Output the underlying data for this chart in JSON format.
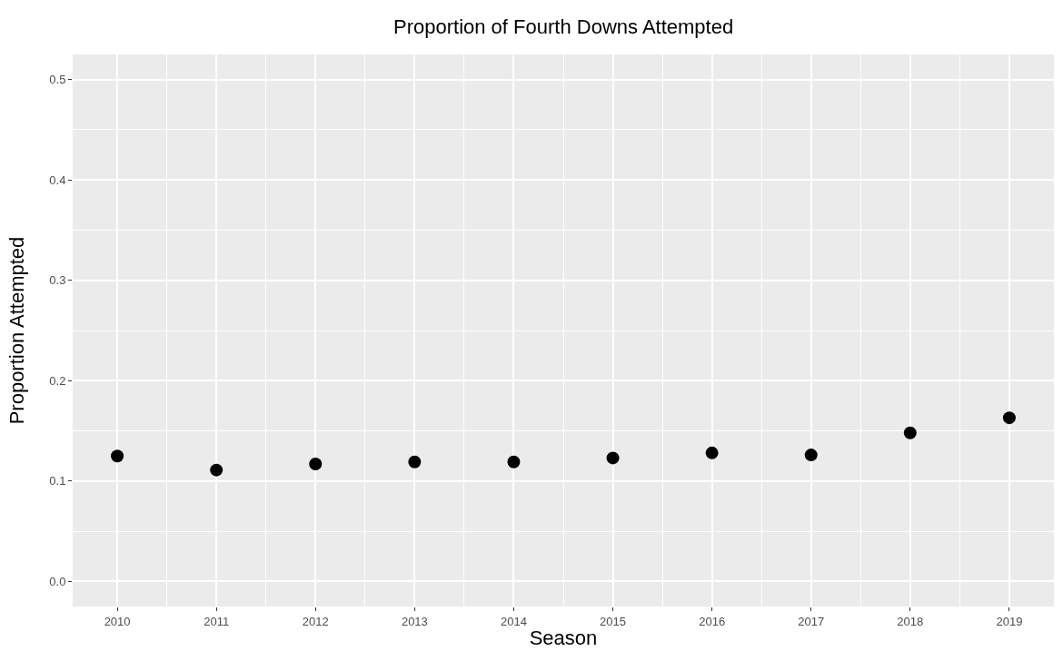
{
  "chart_data": {
    "type": "scatter",
    "title": "Proportion of Fourth Downs Attempted",
    "xlabel": "Season",
    "ylabel": "Proportion Attempted",
    "x": [
      2010,
      2011,
      2012,
      2013,
      2014,
      2015,
      2016,
      2017,
      2018,
      2019
    ],
    "series": [
      {
        "color": "#000000",
        "values": [
          0.125,
          0.111,
          0.117,
          0.119,
          0.119,
          0.123,
          0.128,
          0.126,
          0.148,
          0.163
        ]
      }
    ],
    "xlim": [
      2009.55,
      2019.45
    ],
    "xticks": [
      2010,
      2011,
      2012,
      2013,
      2014,
      2015,
      2016,
      2017,
      2018,
      2019
    ],
    "ylim": [
      -0.025,
      0.525
    ],
    "yticks": [
      {
        "value": 0,
        "label": "0.0"
      },
      {
        "value": 0.1,
        "label": "0.1"
      },
      {
        "value": 0.2,
        "label": "0.2"
      },
      {
        "value": 0.3,
        "label": "0.3"
      },
      {
        "value": 0.4,
        "label": "0.4"
      },
      {
        "value": 0.5,
        "label": "0.5"
      }
    ],
    "grid": true,
    "marker": "circle"
  }
}
